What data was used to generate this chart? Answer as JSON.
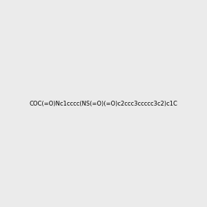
{
  "smiles": "COC(=O)Nc1cccc(NS(=O)(=O)c2ccc3ccccc3c2)c1C",
  "image_size": 300,
  "background_color": "#ebebeb"
}
